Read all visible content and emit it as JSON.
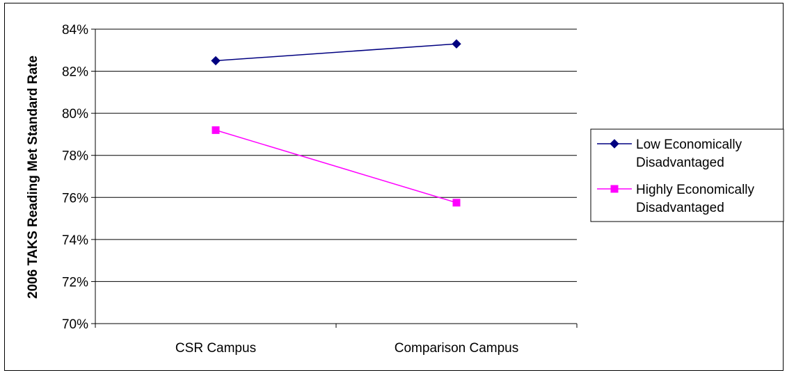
{
  "chart_data": {
    "type": "line",
    "title": "",
    "xlabel": "",
    "ylabel": "2006 TAKS Reading Met Standard Rate",
    "categories": [
      "CSR Campus",
      "Comparison Campus"
    ],
    "ylim": [
      70,
      84
    ],
    "yticks": [
      70,
      72,
      74,
      76,
      78,
      80,
      82,
      84
    ],
    "ytick_labels": [
      "70%",
      "72%",
      "74%",
      "76%",
      "78%",
      "80%",
      "82%",
      "84%"
    ],
    "grid": true,
    "legend_position": "right",
    "series": [
      {
        "name": "Low Economically Disadvantaged",
        "name_lines": [
          "Low Economically",
          "Disadvantaged"
        ],
        "values": [
          82.5,
          83.3
        ],
        "color": "#000080",
        "marker": "diamond"
      },
      {
        "name": "Highly Economically Disadvantaged",
        "name_lines": [
          "Highly Economically",
          "Disadvantaged"
        ],
        "values": [
          79.2,
          75.75
        ],
        "color": "#FF00FF",
        "marker": "square"
      }
    ]
  }
}
